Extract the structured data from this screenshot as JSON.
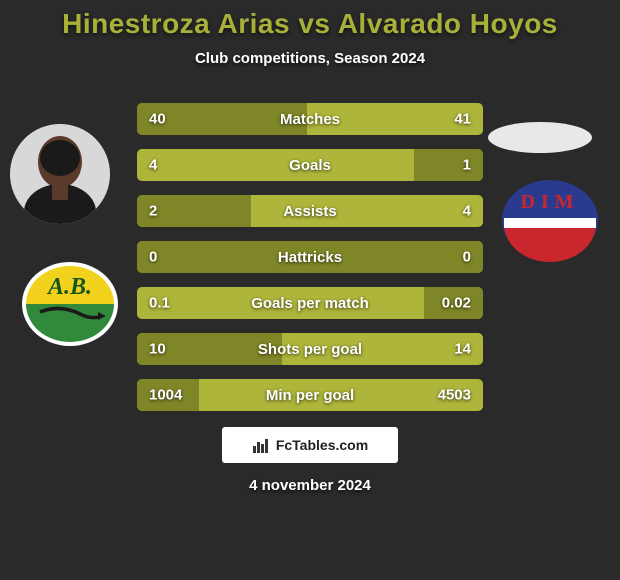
{
  "title": {
    "text": "Hinestroza Arias vs Alvarado Hoyos",
    "color": "#a8b03a",
    "fontsize": 28
  },
  "subtitle": {
    "text": "Club competitions, Season 2024",
    "fontsize": 15
  },
  "date": {
    "text": "4 november 2024",
    "fontsize": 15
  },
  "site": {
    "text": "FcTables.com",
    "fontsize": 14
  },
  "colors": {
    "background": "#2a2a2a",
    "bar_base": "#7f8627",
    "bar_highlight": "#adb53a",
    "bar_text": "#ffffff",
    "bar_fontsize": 15
  },
  "bars": [
    {
      "label": "Matches",
      "left": "40",
      "right": "41",
      "left_pct": 49,
      "highlight_side": "right"
    },
    {
      "label": "Goals",
      "left": "4",
      "right": "1",
      "left_pct": 80,
      "highlight_side": "left"
    },
    {
      "label": "Assists",
      "left": "2",
      "right": "4",
      "left_pct": 33,
      "highlight_side": "right"
    },
    {
      "label": "Hattricks",
      "left": "0",
      "right": "0",
      "left_pct": 50,
      "highlight_side": "none"
    },
    {
      "label": "Goals per match",
      "left": "0.1",
      "right": "0.02",
      "left_pct": 83,
      "highlight_side": "left"
    },
    {
      "label": "Shots per goal",
      "left": "10",
      "right": "14",
      "left_pct": 42,
      "highlight_side": "right"
    },
    {
      "label": "Min per goal",
      "left": "1004",
      "right": "4503",
      "left_pct": 18,
      "highlight_side": "right"
    }
  ],
  "club_left": {
    "initials": "A.B.",
    "top_color": "#f2d21d",
    "bottom_color": "#318a3c",
    "border_color": "#ffffff"
  },
  "club_right": {
    "letters": "DIM",
    "top_color": "#2a3a8f",
    "bottom_color": "#c9262d",
    "stripe_color": "#ffffff"
  }
}
